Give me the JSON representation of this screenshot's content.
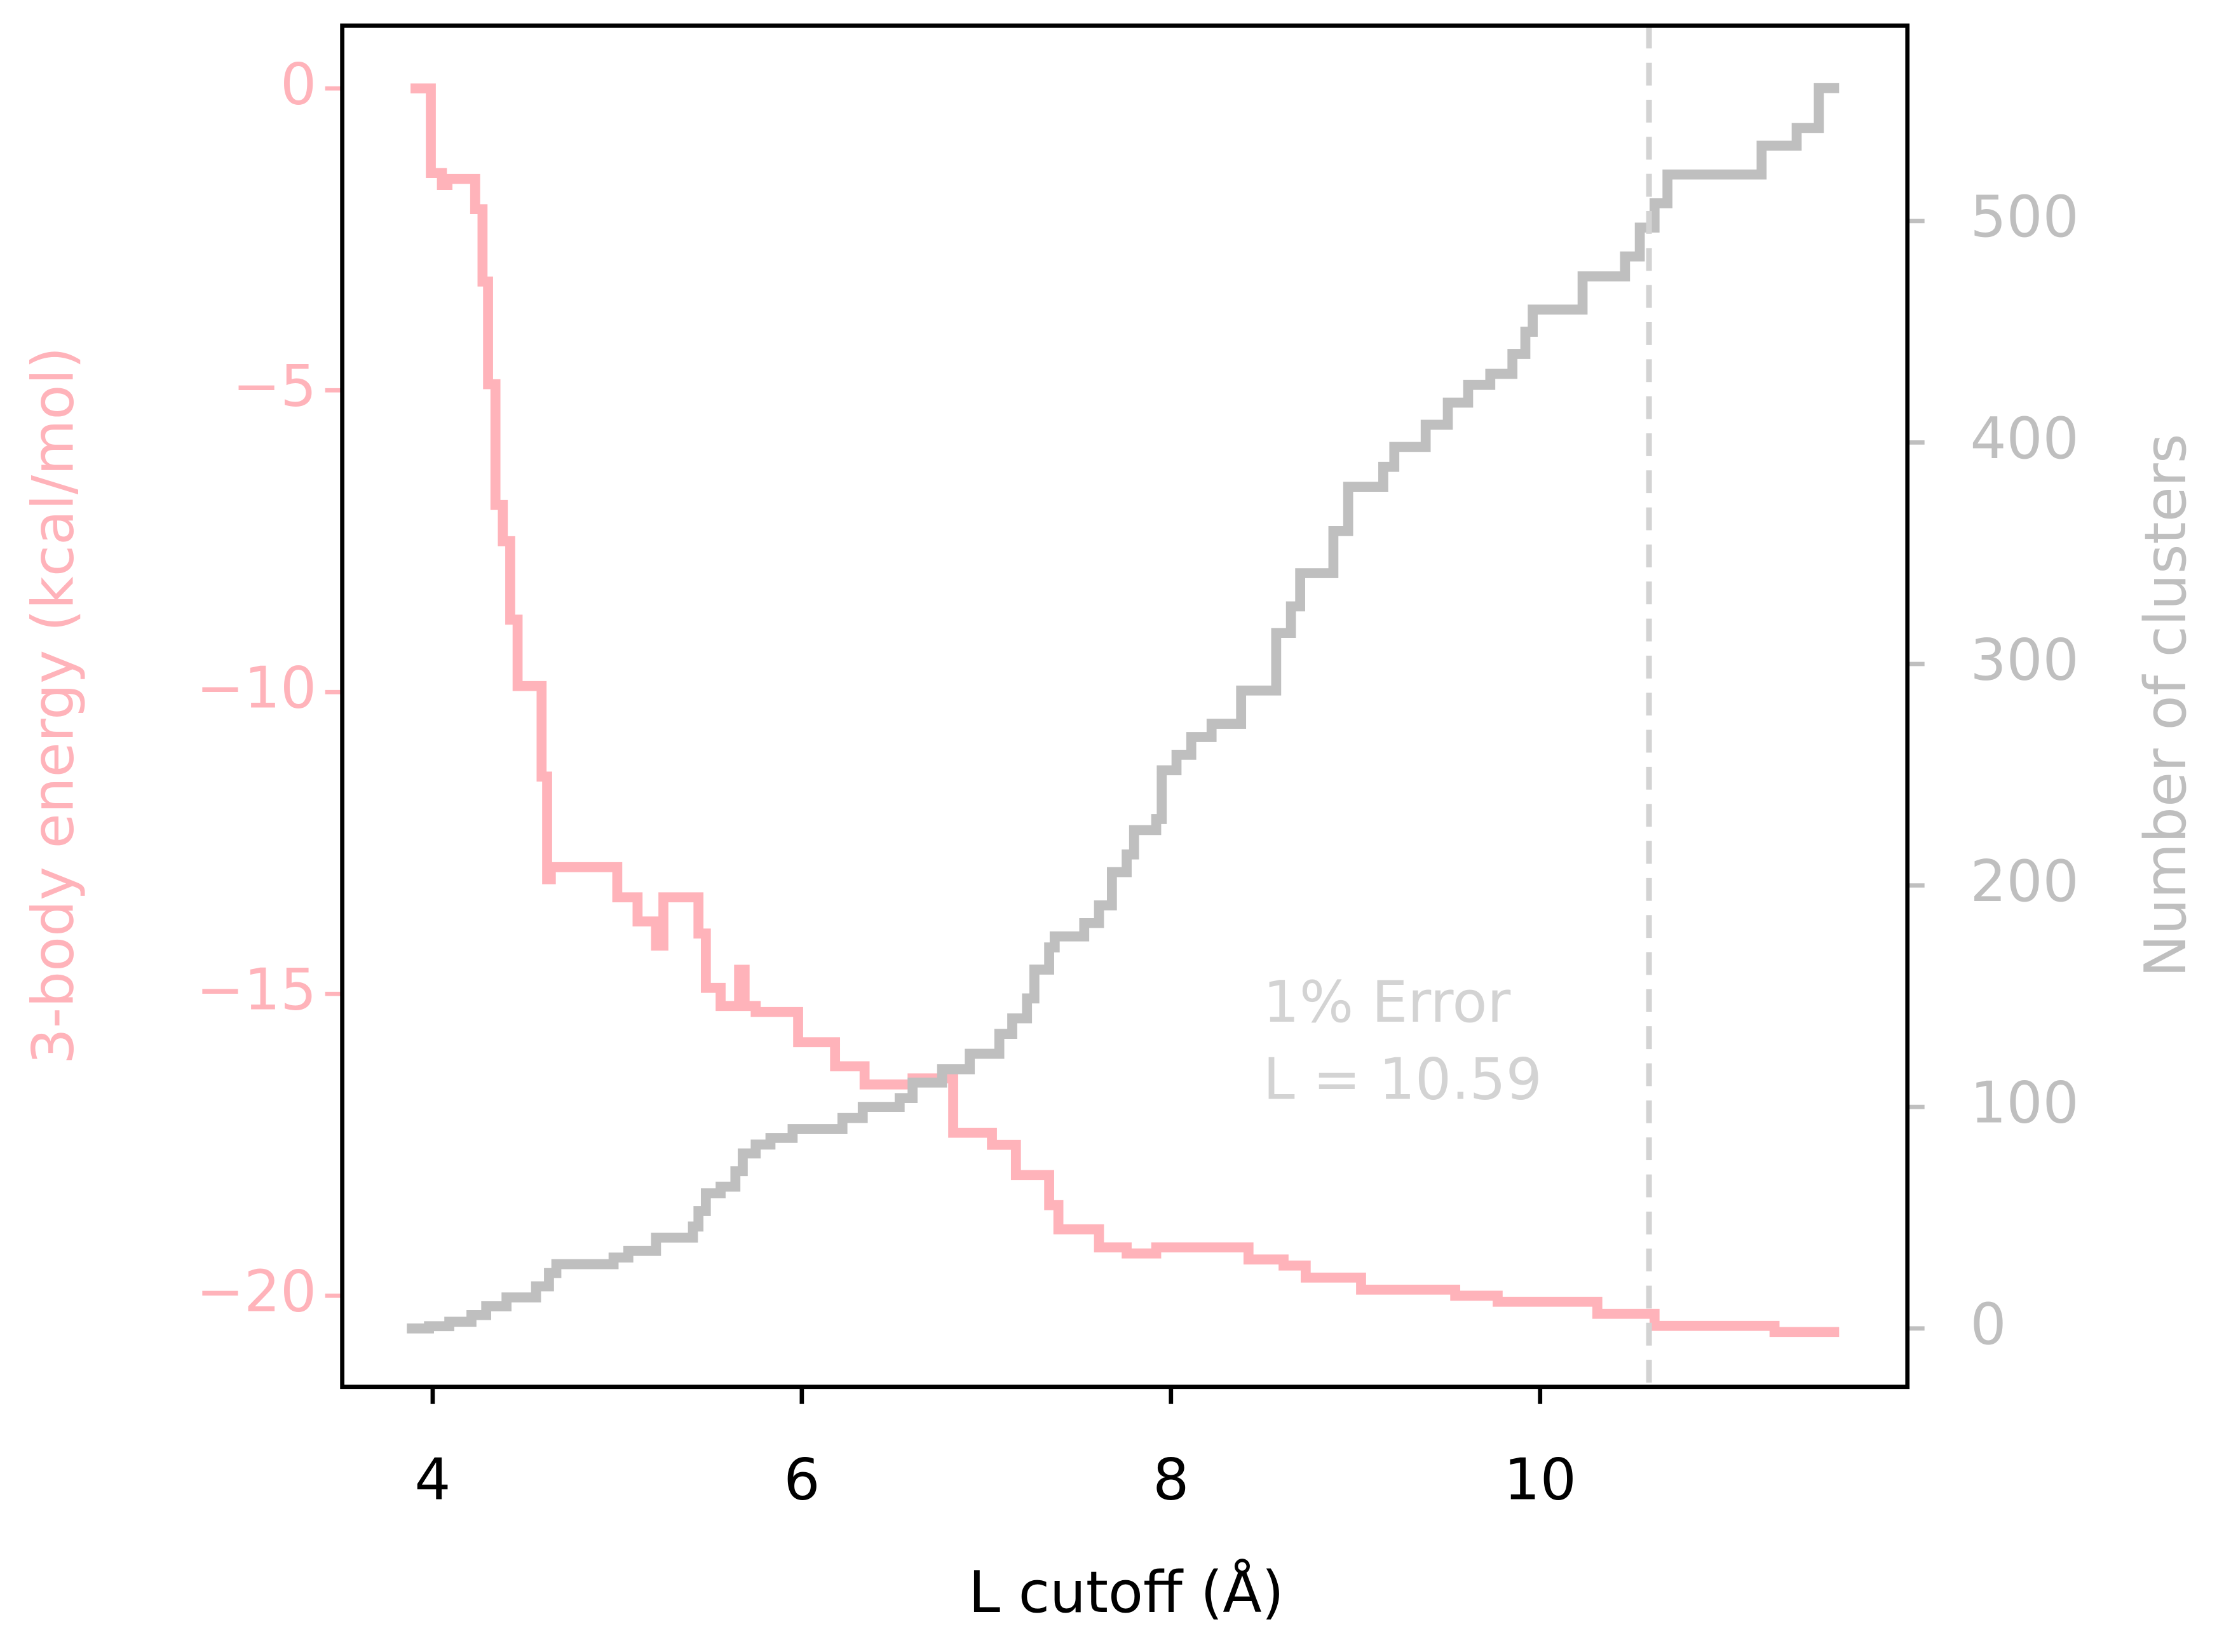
{
  "chart_data": {
    "type": "line",
    "steps": "post",
    "x_label": "L cutoff (Å)",
    "y_label": "3-body energy (kcal/mol)",
    "y2_label": "Number of clusters",
    "xlim": [
      3.51,
      11.99
    ],
    "ylim": [
      -21.51,
      1.04
    ],
    "y2lim": [
      -26.4,
      588.2
    ],
    "xticks": [
      4,
      6,
      8,
      10
    ],
    "yticks": [
      {
        "value": -20,
        "label": "−20"
      },
      {
        "value": -15,
        "label": "−15"
      },
      {
        "value": -10,
        "label": "−10"
      },
      {
        "value": -5,
        "label": "−5"
      },
      0
    ],
    "y2ticks": [
      0,
      100,
      200,
      300,
      400,
      500
    ],
    "y_color": "#ffb3ba",
    "y2_color": "#bfbfbf",
    "vline": {
      "x": 10.59,
      "color": "#d3d3d3",
      "style": "dashed"
    },
    "annotations": [
      "1% Error",
      "L = 10.59"
    ],
    "annotation_color": "#d3d3d3",
    "series": [
      {
        "name": "3-body energy",
        "color": "#ffb3ba",
        "axis": "y",
        "x": [
          3.88,
          3.99,
          4.05,
          4.08,
          4.23,
          4.27,
          4.3,
          4.34,
          4.38,
          4.42,
          4.46,
          4.59,
          4.62,
          4.64,
          5.0,
          5.11,
          5.21,
          5.25,
          5.44,
          5.48,
          5.56,
          5.66,
          5.69,
          5.75,
          5.98,
          6.18,
          6.34,
          6.6,
          6.82,
          7.03,
          7.16,
          7.34,
          7.39,
          7.61,
          7.76,
          7.92,
          8.42,
          8.61,
          8.73,
          9.03,
          9.54,
          9.77,
          10.31,
          10.62,
          11.27,
          11.62
        ],
        "values": [
          0,
          -1.4,
          -1.6,
          -1.5,
          -2.0,
          -3.2,
          -4.9,
          -6.9,
          -7.5,
          -8.8,
          -9.9,
          -11.4,
          -13.1,
          -12.9,
          -13.4,
          -13.8,
          -14.2,
          -13.4,
          -14.0,
          -14.9,
          -15.2,
          -14.6,
          -15.2,
          -15.3,
          -15.8,
          -16.2,
          -16.5,
          -16.4,
          -17.3,
          -17.5,
          -18.0,
          -18.5,
          -18.9,
          -19.2,
          -19.3,
          -19.2,
          -19.4,
          -19.5,
          -19.7,
          -19.9,
          -20.0,
          -20.1,
          -20.3,
          -20.5,
          -20.6,
          -20.6
        ]
      },
      {
        "name": "Number of clusters",
        "color": "#bfbfbf",
        "axis": "y2",
        "x": [
          3.86,
          3.98,
          4.09,
          4.21,
          4.29,
          4.4,
          4.56,
          4.63,
          4.67,
          4.98,
          5.06,
          5.21,
          5.41,
          5.44,
          5.48,
          5.56,
          5.64,
          5.68,
          5.75,
          5.83,
          5.95,
          6.22,
          6.33,
          6.53,
          6.6,
          6.76,
          6.91,
          7.07,
          7.14,
          7.22,
          7.26,
          7.34,
          7.37,
          7.53,
          7.61,
          7.68,
          7.76,
          7.8,
          7.92,
          7.95,
          8.03,
          8.11,
          8.22,
          8.38,
          8.57,
          8.65,
          8.7,
          8.88,
          8.96,
          9.15,
          9.21,
          9.38,
          9.5,
          9.61,
          9.73,
          9.85,
          9.92,
          9.96,
          10.23,
          10.46,
          10.54,
          10.62,
          10.69,
          11.2,
          11.39,
          11.51,
          11.62
        ],
        "values": [
          0,
          1,
          3,
          6,
          10,
          14,
          19,
          25,
          29,
          32,
          35,
          41,
          46,
          53,
          61,
          64,
          71,
          79,
          83,
          86,
          90,
          95,
          100,
          104,
          111,
          117,
          124,
          133,
          140,
          149,
          162,
          172,
          177,
          183,
          191,
          206,
          214,
          225,
          230,
          252,
          259,
          267,
          273,
          288,
          314,
          326,
          341,
          360,
          380,
          389,
          398,
          408,
          418,
          426,
          431,
          440,
          450,
          460,
          475,
          484,
          497,
          508,
          521,
          534,
          542,
          560,
          560
        ]
      }
    ]
  }
}
